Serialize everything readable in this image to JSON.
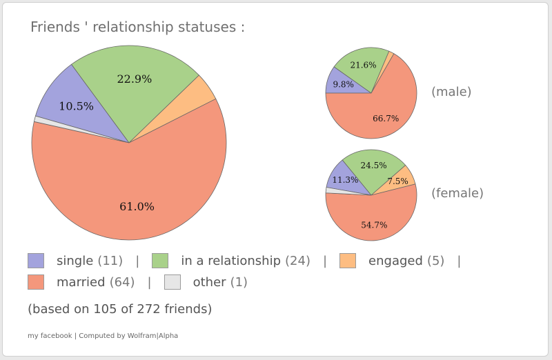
{
  "title": "Friends ' relationship statuses :",
  "colors": {
    "single": "#a3a3dd",
    "in_a_relationship": "#a9d18a",
    "engaged": "#fdbd82",
    "married": "#f4977c",
    "other": "#e6e6e6"
  },
  "chart_data": [
    {
      "type": "pie",
      "name": "all",
      "categories": [
        "single",
        "in a relationship",
        "engaged",
        "married",
        "other"
      ],
      "values": [
        11,
        24,
        5,
        64,
        1
      ],
      "labels": [
        "10.5%",
        "22.9%",
        "",
        "61.0%",
        ""
      ]
    },
    {
      "type": "pie",
      "name": "male",
      "title": "(male)",
      "categories": [
        "single",
        "in a relationship",
        "engaged",
        "married",
        "other"
      ],
      "values": [
        9.8,
        21.6,
        1.9,
        66.7,
        0
      ],
      "labels": [
        "9.8%",
        "21.6%",
        "",
        "66.7%",
        ""
      ]
    },
    {
      "type": "pie",
      "name": "female",
      "title": "(female)",
      "categories": [
        "single",
        "in a relationship",
        "engaged",
        "married",
        "other"
      ],
      "values": [
        11.3,
        24.5,
        7.5,
        54.7,
        2.0
      ],
      "labels": [
        "11.3%",
        "24.5%",
        "7.5%",
        "54.7%",
        ""
      ]
    }
  ],
  "legend": {
    "row1": [
      {
        "key": "single",
        "label": "single",
        "count": "(11)"
      },
      {
        "key": "in_a_relationship",
        "label": "in a relationship",
        "count": "(24)"
      },
      {
        "key": "engaged",
        "label": "engaged",
        "count": "(5)"
      }
    ],
    "row2": [
      {
        "key": "married",
        "label": "married",
        "count": "(64)"
      },
      {
        "key": "other",
        "label": "other",
        "count": "(1)"
      }
    ],
    "separator": "|"
  },
  "based_on": "(based on 105 of 272 friends)",
  "footer": "my facebook | Computed by Wolfram|Alpha"
}
